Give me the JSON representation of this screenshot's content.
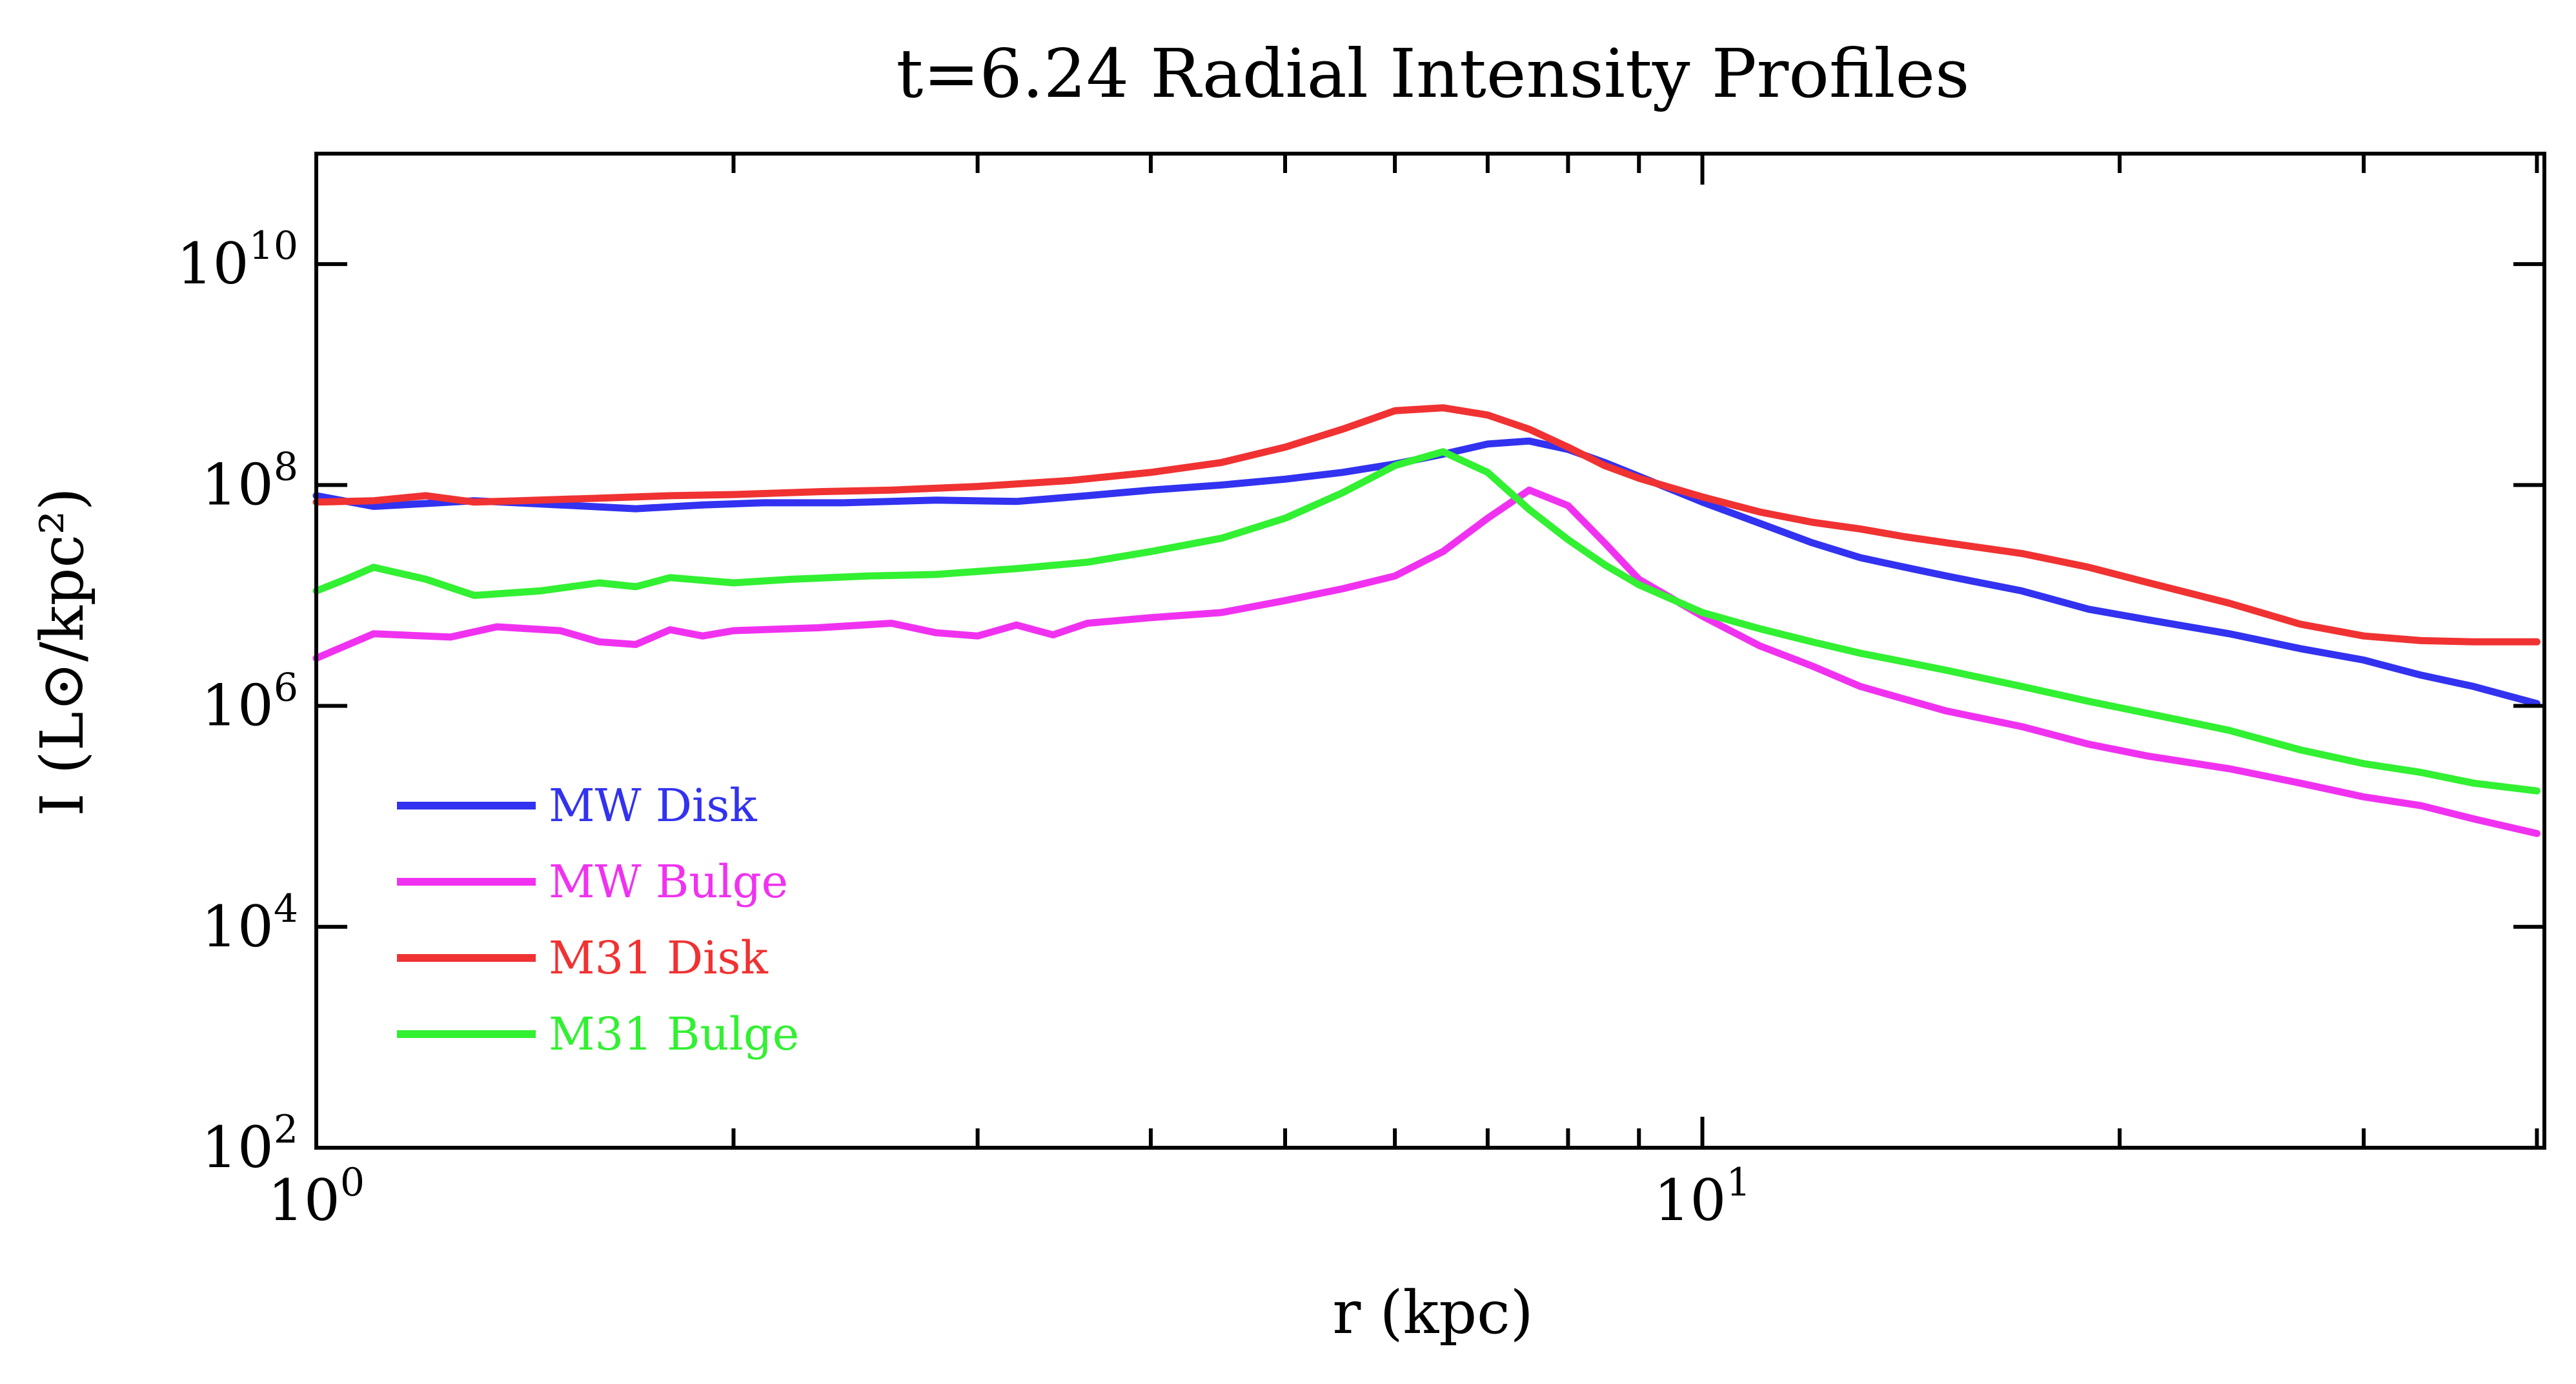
{
  "chart_data": {
    "type": "line",
    "title": "t=6.24 Radial Intensity Profiles",
    "xlabel": "r (kpc)",
    "ylabel": "I (L⊙/kpc²)",
    "xscale": "log",
    "yscale": "log",
    "xlim": [
      1.0,
      40.5
    ],
    "ylim": [
      100,
      100000000000
    ],
    "x_ticks": [
      {
        "value": 1,
        "base": "10",
        "exp": "0"
      },
      {
        "value": 10,
        "base": "10",
        "exp": "1"
      }
    ],
    "y_ticks": [
      {
        "value": 100,
        "base": "10",
        "exp": "2"
      },
      {
        "value": 10000,
        "base": "10",
        "exp": "4"
      },
      {
        "value": 1000000,
        "base": "10",
        "exp": "6"
      },
      {
        "value": 100000000,
        "base": "10",
        "exp": "8"
      },
      {
        "value": 10000000000,
        "base": "10",
        "exp": "10"
      }
    ],
    "grid": false,
    "legend_position": "lower-left",
    "series": [
      {
        "name": "MW Disk",
        "color": "#3232f0",
        "points": [
          [
            1.0,
            80000000.0
          ],
          [
            1.1,
            64000000.0
          ],
          [
            1.2,
            68000000.0
          ],
          [
            1.3,
            72000000.0
          ],
          [
            1.5,
            66000000.0
          ],
          [
            1.7,
            61000000.0
          ],
          [
            1.9,
            66000000.0
          ],
          [
            2.1,
            69000000.0
          ],
          [
            2.4,
            69000000.0
          ],
          [
            2.8,
            73000000.0
          ],
          [
            3.2,
            71000000.0
          ],
          [
            3.6,
            80000000.0
          ],
          [
            4.0,
            90000000.0
          ],
          [
            4.5,
            100000000.0
          ],
          [
            5.0,
            113000000.0
          ],
          [
            5.5,
            130000000.0
          ],
          [
            6.0,
            155000000.0
          ],
          [
            6.5,
            190000000.0
          ],
          [
            7.0,
            235000000.0
          ],
          [
            7.5,
            250000000.0
          ],
          [
            8.0,
            210000000.0
          ],
          [
            8.5,
            160000000.0
          ],
          [
            9.0,
            120000000.0
          ],
          [
            10.0,
            70000000.0
          ],
          [
            11.0,
            45000000.0
          ],
          [
            12.0,
            30000000.0
          ],
          [
            13.0,
            22000000.0
          ],
          [
            14.0,
            18000000.0
          ],
          [
            15.0,
            15000000.0
          ],
          [
            17.0,
            11000000.0
          ],
          [
            19.0,
            7500000.0
          ],
          [
            21.0,
            6000000.0
          ],
          [
            24.0,
            4500000.0
          ],
          [
            27.0,
            3300000.0
          ],
          [
            30.0,
            2600000.0
          ],
          [
            33.0,
            1900000.0
          ],
          [
            36.0,
            1500000.0
          ],
          [
            40.0,
            1050000.0
          ]
        ]
      },
      {
        "name": "MW Bulge",
        "color": "#f032f0",
        "points": [
          [
            1.0,
            2700000.0
          ],
          [
            1.1,
            4500000.0
          ],
          [
            1.25,
            4200000.0
          ],
          [
            1.35,
            5200000.0
          ],
          [
            1.5,
            4800000.0
          ],
          [
            1.6,
            3800000.0
          ],
          [
            1.7,
            3600000.0
          ],
          [
            1.8,
            4900000.0
          ],
          [
            1.9,
            4300000.0
          ],
          [
            2.0,
            4800000.0
          ],
          [
            2.3,
            5100000.0
          ],
          [
            2.6,
            5600000.0
          ],
          [
            2.8,
            4600000.0
          ],
          [
            3.0,
            4300000.0
          ],
          [
            3.2,
            5400000.0
          ],
          [
            3.4,
            4400000.0
          ],
          [
            3.6,
            5600000.0
          ],
          [
            4.0,
            6300000.0
          ],
          [
            4.5,
            7000000.0
          ],
          [
            5.0,
            9000000.0
          ],
          [
            5.5,
            11500000.0
          ],
          [
            6.0,
            15000000.0
          ],
          [
            6.5,
            25000000.0
          ],
          [
            7.0,
            50000000.0
          ],
          [
            7.5,
            90000000.0
          ],
          [
            8.0,
            65000000.0
          ],
          [
            8.5,
            30000000.0
          ],
          [
            9.0,
            14000000.0
          ],
          [
            10.0,
            6500000.0
          ],
          [
            11.0,
            3500000.0
          ],
          [
            12.0,
            2300000.0
          ],
          [
            13.0,
            1500000.0
          ],
          [
            14.0,
            1150000.0
          ],
          [
            15.0,
            900000.0
          ],
          [
            17.0,
            650000.0
          ],
          [
            19.0,
            450000.0
          ],
          [
            21.0,
            350000.0
          ],
          [
            24.0,
            270000.0
          ],
          [
            27.0,
            200000.0
          ],
          [
            30.0,
            150000.0
          ],
          [
            33.0,
            125000.0
          ],
          [
            36.0,
            95000.0
          ],
          [
            40.0,
            70000.0
          ]
        ]
      },
      {
        "name": "M31 Disk",
        "color": "#f03232",
        "points": [
          [
            1.0,
            70000000.0
          ],
          [
            1.1,
            72000000.0
          ],
          [
            1.2,
            80000000.0
          ],
          [
            1.3,
            70000000.0
          ],
          [
            1.4,
            72000000.0
          ],
          [
            1.6,
            76000000.0
          ],
          [
            1.8,
            80000000.0
          ],
          [
            2.0,
            82000000.0
          ],
          [
            2.3,
            87000000.0
          ],
          [
            2.6,
            90000000.0
          ],
          [
            3.0,
            97000000.0
          ],
          [
            3.5,
            110000000.0
          ],
          [
            4.0,
            130000000.0
          ],
          [
            4.5,
            160000000.0
          ],
          [
            5.0,
            220000000.0
          ],
          [
            5.5,
            320000000.0
          ],
          [
            6.0,
            470000000.0
          ],
          [
            6.5,
            500000000.0
          ],
          [
            7.0,
            430000000.0
          ],
          [
            7.5,
            320000000.0
          ],
          [
            8.0,
            220000000.0
          ],
          [
            8.5,
            150000000.0
          ],
          [
            9.0,
            115000000.0
          ],
          [
            10.0,
            78000000.0
          ],
          [
            11.0,
            57000000.0
          ],
          [
            12.0,
            46000000.0
          ],
          [
            13.0,
            40000000.0
          ],
          [
            14.0,
            34000000.0
          ],
          [
            15.0,
            30000000.0
          ],
          [
            17.0,
            24000000.0
          ],
          [
            19.0,
            18000000.0
          ],
          [
            21.0,
            13000000.0
          ],
          [
            24.0,
            8500000.0
          ],
          [
            27.0,
            5500000.0
          ],
          [
            30.0,
            4300000.0
          ],
          [
            33.0,
            3900000.0
          ],
          [
            36.0,
            3800000.0
          ],
          [
            40.0,
            3800000.0
          ]
        ]
      },
      {
        "name": "M31 Bulge",
        "color": "#32f032",
        "points": [
          [
            1.0,
            11000000.0
          ],
          [
            1.05,
            14000000.0
          ],
          [
            1.1,
            18000000.0
          ],
          [
            1.2,
            14000000.0
          ],
          [
            1.3,
            10000000.0
          ],
          [
            1.45,
            11000000.0
          ],
          [
            1.6,
            13000000.0
          ],
          [
            1.7,
            12000000.0
          ],
          [
            1.8,
            14500000.0
          ],
          [
            2.0,
            13000000.0
          ],
          [
            2.2,
            14000000.0
          ],
          [
            2.5,
            15000000.0
          ],
          [
            2.8,
            15500000.0
          ],
          [
            3.2,
            17500000.0
          ],
          [
            3.6,
            20000000.0
          ],
          [
            4.0,
            25000000.0
          ],
          [
            4.5,
            33000000.0
          ],
          [
            5.0,
            50000000.0
          ],
          [
            5.5,
            85000000.0
          ],
          [
            6.0,
            150000000.0
          ],
          [
            6.5,
            200000000.0
          ],
          [
            7.0,
            130000000.0
          ],
          [
            7.5,
            60000000.0
          ],
          [
            8.0,
            32000000.0
          ],
          [
            8.5,
            19000000.0
          ],
          [
            9.0,
            12500000.0
          ],
          [
            10.0,
            7000000.0
          ],
          [
            11.0,
            5000000.0
          ],
          [
            12.0,
            3800000.0
          ],
          [
            13.0,
            3000000.0
          ],
          [
            14.0,
            2500000.0
          ],
          [
            15.0,
            2100000.0
          ],
          [
            17.0,
            1500000.0
          ],
          [
            19.0,
            1100000.0
          ],
          [
            21.0,
            850000.0
          ],
          [
            24.0,
            600000.0
          ],
          [
            27.0,
            400000.0
          ],
          [
            30.0,
            300000.0
          ],
          [
            33.0,
            250000.0
          ],
          [
            36.0,
            200000.0
          ],
          [
            40.0,
            170000.0
          ]
        ]
      }
    ]
  }
}
